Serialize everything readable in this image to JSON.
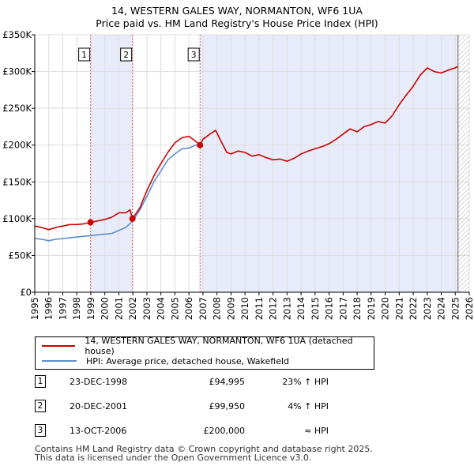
{
  "title_line1": "14, WESTERN GALES WAY, NORMANTON, WF6 1UA",
  "title_line2": "Price paid vs. HM Land Registry's House Price Index (HPI)",
  "colors": {
    "property": "#cc0000",
    "hpi": "#5b8fd0",
    "shade": "#e8ecfa",
    "marker_line": "#e06060"
  },
  "legend": {
    "property_label": "14, WESTERN GALES WAY, NORMANTON, WF6 1UA (detached house)",
    "hpi_label": "HPI: Average price, detached house, Wakefield"
  },
  "sales": [
    {
      "num": "1",
      "date": "23-DEC-1998",
      "price": "£94,995",
      "hpi": "23% ↑ HPI",
      "year": 1998.98,
      "value": 94995
    },
    {
      "num": "2",
      "date": "20-DEC-2001",
      "price": "£99,950",
      "hpi": "4% ↑ HPI",
      "year": 2001.97,
      "value": 99950
    },
    {
      "num": "3",
      "date": "13-OCT-2006",
      "price": "£200,000",
      "hpi": "≈ HPI",
      "year": 2006.79,
      "value": 200000
    }
  ],
  "footer_line1": "Contains HM Land Registry data © Crown copyright and database right 2025.",
  "footer_line2": "This data is licensed under the Open Government Licence v3.0.",
  "chart_data": {
    "type": "line",
    "title": "14, WESTERN GALES WAY, NORMANTON, WF6 1UA — Price paid vs. HM Land Registry's House Price Index (HPI)",
    "xlim": [
      1995,
      2026
    ],
    "ylim": [
      0,
      350000
    ],
    "x_ticks": [
      1995,
      1996,
      1997,
      1998,
      1999,
      2000,
      2001,
      2002,
      2003,
      2004,
      2005,
      2006,
      2007,
      2008,
      2009,
      2010,
      2011,
      2012,
      2013,
      2014,
      2015,
      2016,
      2017,
      2018,
      2019,
      2020,
      2021,
      2022,
      2023,
      2024,
      2025,
      2026
    ],
    "y_ticks": [
      {
        "value": 0,
        "label": "£0"
      },
      {
        "value": 50000,
        "label": "£50K"
      },
      {
        "value": 100000,
        "label": "£100K"
      },
      {
        "value": 150000,
        "label": "£150K"
      },
      {
        "value": 200000,
        "label": "£200K"
      },
      {
        "value": 250000,
        "label": "£250K"
      },
      {
        "value": 300000,
        "label": "£300K"
      },
      {
        "value": 350000,
        "label": "£350K"
      }
    ],
    "grid": true,
    "shaded_ranges": [
      [
        1998.98,
        2001.97
      ],
      [
        2006.79,
        2025.2
      ]
    ],
    "forecast_from": 2025.2,
    "series": [
      {
        "name": "14, WESTERN GALES WAY, NORMANTON, WF6 1UA (detached house)",
        "x": [
          1995.0,
          1995.5,
          1996.0,
          1996.5,
          1997.0,
          1997.5,
          1998.0,
          1998.5,
          1998.98,
          1999.5,
          2000.0,
          2000.5,
          2001.0,
          2001.5,
          2001.8,
          2001.97,
          2002.5,
          2003.0,
          2003.5,
          2004.0,
          2004.5,
          2005.0,
          2005.5,
          2006.0,
          2006.5,
          2006.79,
          2007.0,
          2007.5,
          2007.9,
          2008.3,
          2008.7,
          2009.0,
          2009.5,
          2010.0,
          2010.5,
          2011.0,
          2011.5,
          2012.0,
          2012.5,
          2013.0,
          2013.5,
          2014.0,
          2014.5,
          2015.0,
          2015.5,
          2016.0,
          2016.5,
          2017.0,
          2017.5,
          2018.0,
          2018.5,
          2019.0,
          2019.5,
          2020.0,
          2020.5,
          2021.0,
          2021.5,
          2022.0,
          2022.5,
          2023.0,
          2023.5,
          2024.0,
          2024.5,
          2025.0,
          2025.2
        ],
        "values": [
          90000,
          88000,
          85000,
          88000,
          90000,
          92000,
          92000,
          93000,
          94995,
          97000,
          99000,
          102000,
          108000,
          108000,
          112000,
          99950,
          115000,
          138000,
          158000,
          175000,
          190000,
          203000,
          210000,
          212000,
          205000,
          200000,
          208000,
          215000,
          220000,
          205000,
          190000,
          188000,
          192000,
          190000,
          185000,
          187000,
          183000,
          180000,
          181000,
          178000,
          182000,
          188000,
          192000,
          195000,
          198000,
          202000,
          208000,
          215000,
          222000,
          218000,
          225000,
          228000,
          232000,
          230000,
          240000,
          255000,
          268000,
          280000,
          295000,
          305000,
          300000,
          298000,
          302000,
          305000,
          307000
        ]
      },
      {
        "name": "HPI: Average price, detached house, Wakefield",
        "x": [
          1995.0,
          1995.5,
          1996.0,
          1996.5,
          1997.0,
          1997.5,
          1998.0,
          1998.5,
          1999.0,
          1999.5,
          2000.0,
          2000.5,
          2001.0,
          2001.5,
          2002.0,
          2002.5,
          2003.0,
          2003.5,
          2004.0,
          2004.5,
          2005.0,
          2005.5,
          2006.0,
          2006.5,
          2006.79
        ],
        "values": [
          73000,
          72000,
          70000,
          72000,
          73000,
          74000,
          75000,
          76000,
          77000,
          78000,
          79000,
          80000,
          84000,
          88000,
          97000,
          112000,
          130000,
          150000,
          165000,
          180000,
          188000,
          195000,
          196000,
          200000,
          200000
        ]
      }
    ]
  }
}
